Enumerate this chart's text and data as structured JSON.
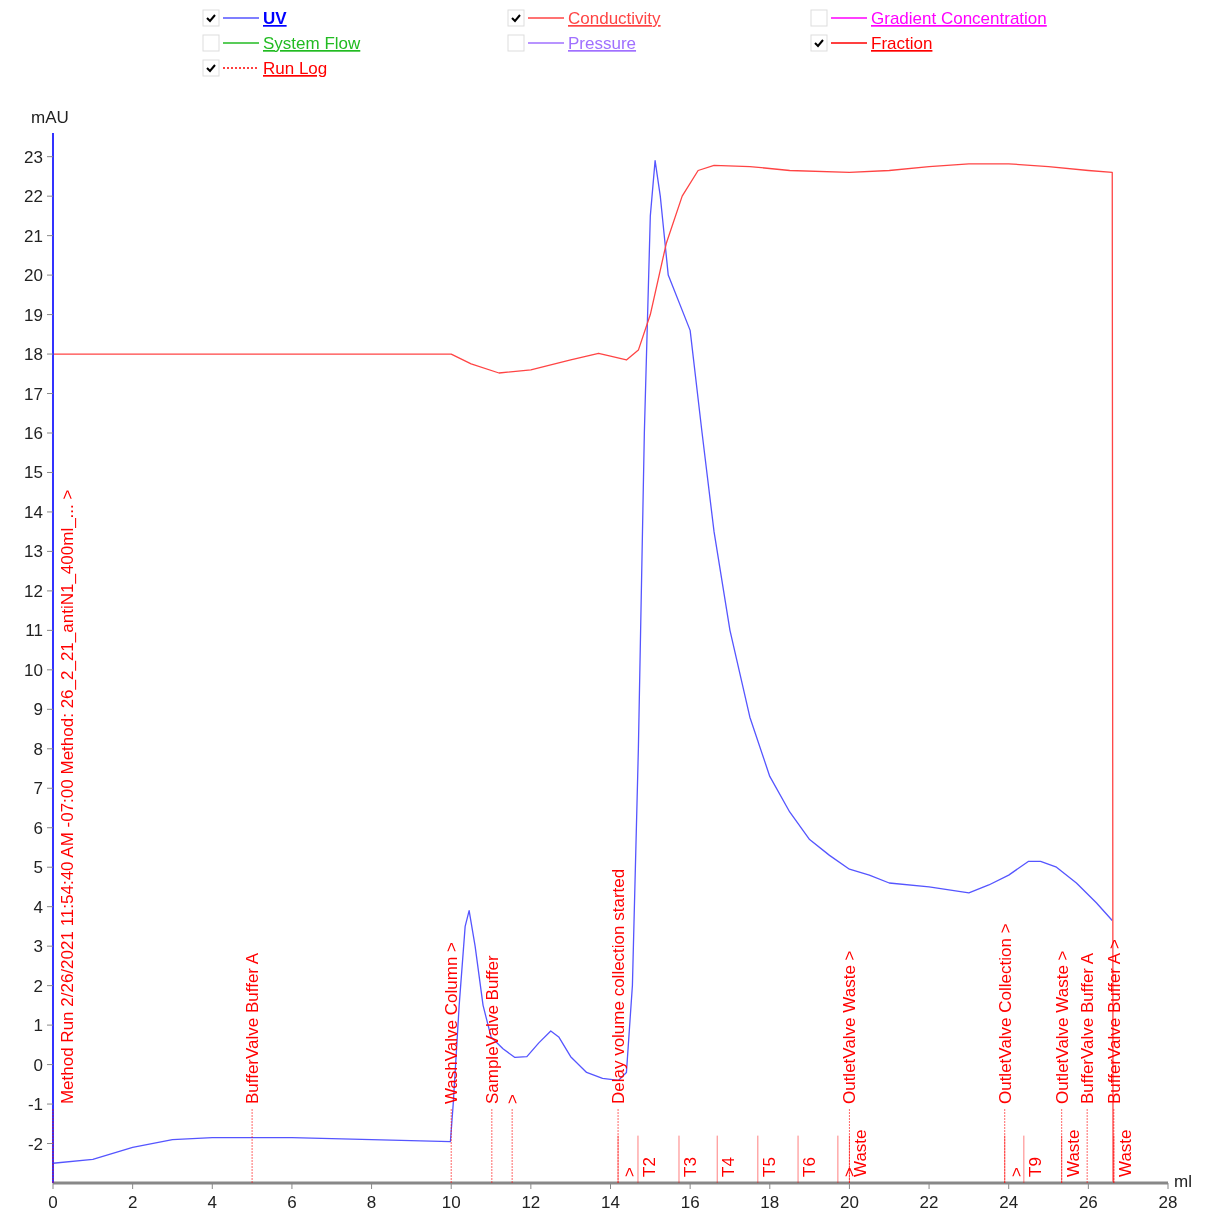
{
  "chart_data": {
    "type": "line",
    "xlabel": "ml",
    "ylabel": "mAU",
    "xlim": [
      0,
      28
    ],
    "ylim": [
      -3,
      23.6
    ],
    "xticks": [
      0,
      2,
      4,
      6,
      8,
      10,
      12,
      14,
      16,
      18,
      20,
      22,
      24,
      26,
      28
    ],
    "yticks": [
      -2,
      -1,
      0,
      1,
      2,
      3,
      4,
      5,
      6,
      7,
      8,
      9,
      10,
      11,
      12,
      13,
      14,
      15,
      16,
      17,
      18,
      19,
      20,
      21,
      22,
      23
    ],
    "grid": false,
    "legend": "top",
    "series": [
      {
        "name": "UV",
        "color": "#5555ff",
        "line_style": "solid",
        "x": [
          0,
          1,
          2,
          3,
          4,
          5,
          6,
          8,
          9.98,
          10.05,
          10.2,
          10.35,
          10.45,
          10.6,
          10.8,
          11,
          11.3,
          11.6,
          11.9,
          12.2,
          12.5,
          12.7,
          13,
          13.4,
          13.8,
          14.2,
          14.4,
          14.55,
          14.7,
          14.85,
          15,
          15.12,
          15.25,
          15.45,
          16,
          16.3,
          16.6,
          17,
          17.5,
          18,
          18.5,
          19,
          19.5,
          20,
          20.5,
          21,
          22,
          23,
          23.5,
          24,
          24.5,
          24.8,
          25.2,
          25.7,
          26.2,
          26.6
        ],
        "values": [
          -2.5,
          -2.4,
          -2.1,
          -1.9,
          -1.85,
          -1.85,
          -1.85,
          -1.9,
          -1.95,
          -1,
          1.5,
          3.5,
          3.9,
          3,
          1.5,
          0.7,
          0.4,
          0.18,
          0.2,
          0.55,
          0.85,
          0.7,
          0.2,
          -0.2,
          -0.35,
          -0.4,
          -0.2,
          2,
          8,
          16,
          21.5,
          22.9,
          22,
          20,
          18.6,
          16,
          13.5,
          11,
          8.8,
          7.3,
          6.4,
          5.7,
          5.3,
          4.95,
          4.8,
          4.6,
          4.5,
          4.35,
          4.55,
          4.8,
          5.15,
          5.15,
          5,
          4.6,
          4.1,
          3.65
        ]
      },
      {
        "name": "Conductivity",
        "color": "#ff4444",
        "line_style": "solid",
        "x": [
          0,
          10,
          10.5,
          11.2,
          12,
          13,
          13.7,
          14,
          14.4,
          14.7,
          15,
          15.4,
          15.8,
          16.2,
          16.6,
          17.5,
          18.5,
          20,
          21,
          22,
          23,
          24,
          25,
          26,
          26.6,
          26.62
        ],
        "values": [
          18,
          18,
          17.75,
          17.52,
          17.6,
          17.85,
          18.02,
          17.95,
          17.85,
          18.1,
          19,
          20.8,
          22,
          22.65,
          22.78,
          22.75,
          22.65,
          22.6,
          22.65,
          22.75,
          22.82,
          22.82,
          22.75,
          22.65,
          22.6,
          -3
        ]
      },
      {
        "name": "Gradient Concentration",
        "color": "#ff00ff",
        "line_style": "solid"
      },
      {
        "name": "System Flow",
        "color": "#22bb22",
        "line_style": "solid"
      },
      {
        "name": "Pressure",
        "color": "#a070ff",
        "line_style": "solid"
      },
      {
        "name": "Fraction",
        "color": "#ff0000",
        "line_style": "solid"
      },
      {
        "name": "Run Log",
        "color": "#ff0000",
        "line_style": "dotted"
      }
    ],
    "ref_lines": [
      {
        "axis": "x",
        "line_style": "dotted",
        "value": 0,
        "label": "Method Run 2/26/2021 11:54:40 AM -07:00 Method: 26_2_21_antiN1_400ml_... >",
        "color": "#ff0000"
      },
      {
        "axis": "x",
        "line_style": "dotted",
        "value": 5,
        "label": "BufferValve Buffer A",
        "color": "#ff0000"
      },
      {
        "axis": "x",
        "line_style": "dotted",
        "value": 10,
        "label": "WashValve Column >",
        "color": "#ff0000"
      },
      {
        "axis": "x",
        "line_style": "dotted",
        "value": 11.02,
        "label": "SampleValve Buffer",
        "color": "#ff0000"
      },
      {
        "axis": "x",
        "line_style": "dotted",
        "value": 11.53,
        "label": ">",
        "color": "#ff0000"
      },
      {
        "axis": "x",
        "line_style": "dotted",
        "value": 14.19,
        "label": "Delay volume collection started",
        "color": "#ff0000"
      },
      {
        "axis": "x",
        "line_style": "dotted",
        "value": 20,
        "label": "OutletValve Waste >",
        "color": "#ff0000"
      },
      {
        "axis": "x",
        "line_style": "dotted",
        "value": 23.9,
        "label": "OutletValve Collection >",
        "color": "#ff0000"
      },
      {
        "axis": "x",
        "line_style": "dotted",
        "value": 25.33,
        "label": "OutletValve Waste >",
        "color": "#ff0000"
      },
      {
        "axis": "x",
        "line_style": "dotted",
        "value": 25.97,
        "label": "BufferValve Buffer A",
        "color": "#ff0000"
      },
      {
        "axis": "x",
        "line_style": "dotted",
        "value": 26.64,
        "label": "BufferValve Buffer A >",
        "color": "#ff0000"
      },
      {
        "axis": "x",
        "line_style": "solid",
        "value": 14.19,
        "label": ">",
        "color": "#ff0000"
      },
      {
        "axis": "x",
        "line_style": "solid",
        "value": 14.69,
        "label": "T2",
        "color": "#ff0000"
      },
      {
        "axis": "x",
        "line_style": "solid",
        "value": 15.72,
        "label": "T3",
        "color": "#ff0000"
      },
      {
        "axis": "x",
        "line_style": "solid",
        "value": 16.68,
        "label": "T4",
        "color": "#ff0000"
      },
      {
        "axis": "x",
        "line_style": "solid",
        "value": 17.7,
        "label": "T5",
        "color": "#ff0000"
      },
      {
        "axis": "x",
        "line_style": "solid",
        "value": 18.71,
        "label": "T6",
        "color": "#ff0000"
      },
      {
        "axis": "x",
        "line_style": "solid",
        "value": 19.71,
        "label": ">",
        "color": "#ff0000"
      },
      {
        "axis": "x",
        "line_style": "solid",
        "value": 20,
        "label": "Waste",
        "color": "#ff0000"
      },
      {
        "axis": "x",
        "line_style": "solid",
        "value": 23.9,
        "label": ">",
        "color": "#ff0000"
      },
      {
        "axis": "x",
        "line_style": "solid",
        "value": 24.38,
        "label": "T9",
        "color": "#ff0000"
      },
      {
        "axis": "x",
        "line_style": "solid",
        "value": 25.33,
        "label": "Waste",
        "color": "#ff0000"
      },
      {
        "axis": "x",
        "line_style": "solid",
        "value": 26.64,
        "label": "Waste",
        "color": "#ff0000"
      }
    ]
  }
}
